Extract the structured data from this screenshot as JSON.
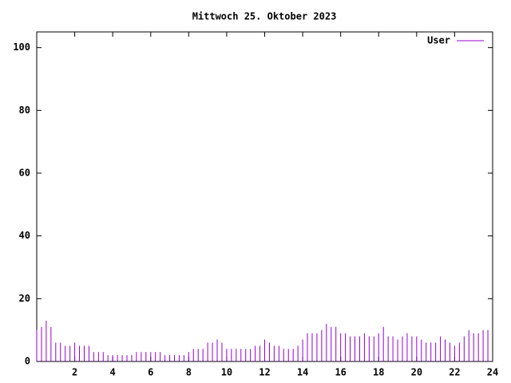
{
  "chart_data": {
    "type": "impulse",
    "title": "Mittwoch 25. Oktober 2023",
    "x": [
      0,
      0.25,
      0.5,
      0.75,
      1,
      1.25,
      1.5,
      1.75,
      2,
      2.25,
      2.5,
      2.75,
      3,
      3.25,
      3.5,
      3.75,
      4,
      4.25,
      4.5,
      4.75,
      5,
      5.25,
      5.5,
      5.75,
      6,
      6.25,
      6.5,
      6.75,
      7,
      7.25,
      7.5,
      7.75,
      8,
      8.25,
      8.5,
      8.75,
      9,
      9.25,
      9.5,
      9.75,
      10,
      10.25,
      10.5,
      10.75,
      11,
      11.25,
      11.5,
      11.75,
      12,
      12.25,
      12.5,
      12.75,
      13,
      13.25,
      13.5,
      13.75,
      14,
      14.25,
      14.5,
      14.75,
      15,
      15.25,
      15.5,
      15.75,
      16,
      16.25,
      16.5,
      16.75,
      17,
      17.25,
      17.5,
      17.75,
      18,
      18.25,
      18.5,
      18.75,
      19,
      19.25,
      19.5,
      19.75,
      20,
      20.25,
      20.5,
      20.75,
      21,
      21.25,
      21.5,
      21.75,
      22,
      22.25,
      22.5,
      22.75,
      23,
      23.25,
      23.5,
      23.75
    ],
    "series": [
      {
        "name": "User",
        "color": "#9400d3",
        "values": [
          10,
          11,
          13,
          11,
          6,
          6,
          5,
          5,
          6,
          5,
          5,
          5,
          3,
          3,
          3,
          2,
          2,
          2,
          2,
          2,
          2,
          3,
          3,
          3,
          3,
          3,
          3,
          2,
          2,
          2,
          2,
          2,
          3,
          4,
          4,
          4,
          6,
          6,
          7,
          6,
          4,
          4,
          4,
          4,
          4,
          4,
          5,
          5,
          7,
          6,
          5,
          5,
          4,
          4,
          4,
          5,
          7,
          9,
          9,
          9,
          10,
          12,
          11,
          11,
          9,
          9,
          8,
          8,
          8,
          9,
          8,
          8,
          9,
          11,
          8,
          8,
          7,
          8,
          9,
          8,
          8,
          7,
          6,
          6,
          6,
          8,
          7,
          6,
          5,
          6,
          8,
          10,
          9,
          9,
          10,
          10
        ]
      }
    ],
    "xlim": [
      0,
      24
    ],
    "xticks": [
      2,
      4,
      6,
      8,
      10,
      12,
      14,
      16,
      18,
      20,
      22,
      24
    ],
    "ylim": [
      0,
      105
    ],
    "yticks": [
      0,
      20,
      40,
      60,
      80,
      100
    ],
    "legend": "top-right"
  }
}
